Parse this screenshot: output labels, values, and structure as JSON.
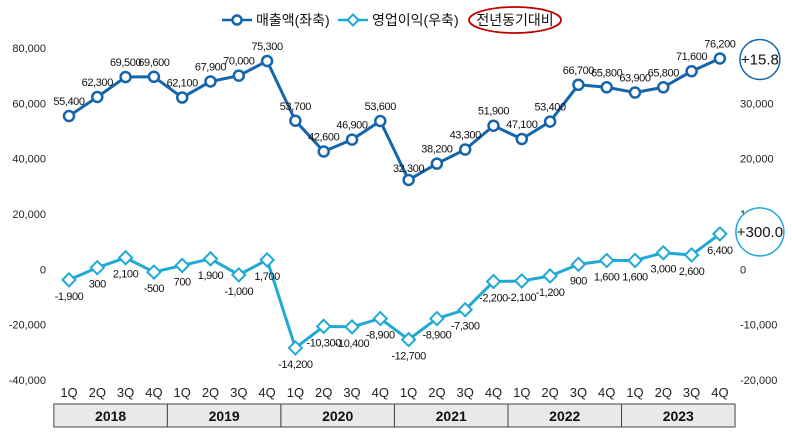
{
  "chart_data": {
    "type": "line",
    "title": "",
    "legend": [
      {
        "name": "매출액(좌축)",
        "marker": "circle",
        "color": "#1565ad"
      },
      {
        "name": "영업이익(우축)",
        "marker": "diamond",
        "color": "#1fa9d4"
      },
      {
        "name": "전년동기대비",
        "marker": "ellipse",
        "color": "#c00000"
      }
    ],
    "quarters": [
      "1Q",
      "2Q",
      "3Q",
      "4Q",
      "1Q",
      "2Q",
      "3Q",
      "4Q",
      "1Q",
      "2Q",
      "3Q",
      "4Q",
      "1Q",
      "2Q",
      "3Q",
      "4Q",
      "1Q",
      "2Q",
      "3Q",
      "4Q",
      "1Q",
      "2Q",
      "3Q",
      "4Q"
    ],
    "years": [
      "2018",
      "2019",
      "2020",
      "2021",
      "2022",
      "2023"
    ],
    "left_axis": {
      "ticks": [
        80000,
        60000,
        40000,
        20000,
        0,
        -20000,
        -40000
      ],
      "tick_labels": [
        "80,000",
        "60,000",
        "40,000",
        "20,000",
        "0",
        "-20,000",
        "-40,000"
      ],
      "ylim": [
        -40000,
        80000
      ]
    },
    "right_axis": {
      "ticks": [
        30000,
        20000,
        10000,
        0,
        -10000,
        -20000
      ],
      "tick_labels": [
        "30,000",
        "20,000",
        "10,000",
        "0",
        "-10,000",
        "-20,000"
      ],
      "ylim": [
        -20000,
        40000
      ]
    },
    "series": [
      {
        "name": "매출액(좌축)",
        "axis": "left",
        "values": [
          55400,
          62300,
          69500,
          69600,
          62100,
          67900,
          70000,
          75300,
          53700,
          42600,
          46900,
          53600,
          32300,
          38200,
          43300,
          51900,
          47100,
          53400,
          66700,
          65800,
          63900,
          65800,
          71600,
          76200
        ],
        "labels": [
          "55,400",
          "62,300",
          "69,500",
          "69,600",
          "62,100",
          "67,900",
          "70,000",
          "75,300",
          "53,700",
          "42,600",
          "46,900",
          "53,600",
          "32,300",
          "38,200",
          "43,300",
          "51,900",
          "47,100",
          "53,400",
          "66,700",
          "65,800",
          "63,900",
          "65,800",
          "71,600",
          "76,200"
        ]
      },
      {
        "name": "영업이익(우축)",
        "axis": "right",
        "values": [
          -1900,
          300,
          2100,
          -500,
          700,
          1900,
          -1000,
          1700,
          -14200,
          -10300,
          -10400,
          -8900,
          -12700,
          -8900,
          -7300,
          -2200,
          -2100,
          -1200,
          900,
          1600,
          1600,
          3000,
          2600,
          6400
        ],
        "labels": [
          "-1,900",
          "300",
          "2,100",
          "-500",
          "700",
          "1,900",
          "-1,000",
          "1,700",
          "-14,200",
          "-10,300",
          "-10,400",
          "-8,900",
          "-12,700",
          "-8,900",
          "-7,300",
          "-2,200",
          "-2,100",
          "-1,200",
          "900",
          "1,600",
          "1,600",
          "3,000",
          "2,600",
          "6,400"
        ]
      }
    ],
    "annotations": [
      {
        "text": "+15.8",
        "series": "매출액(좌축)"
      },
      {
        "text": "+300.0",
        "series": "영업이익(우축)"
      }
    ]
  }
}
